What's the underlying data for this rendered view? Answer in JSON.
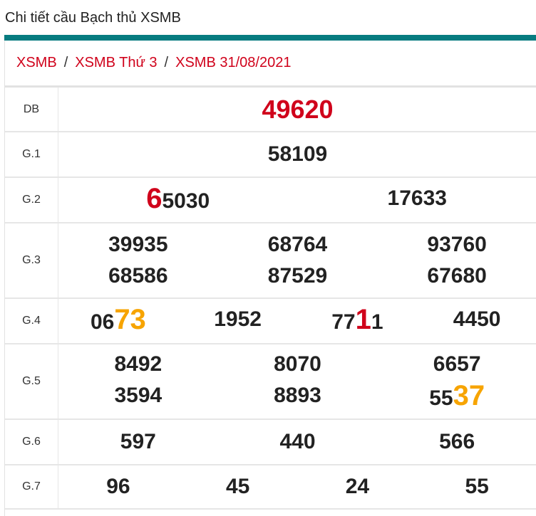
{
  "title": "Chi tiết cầu Bạch thủ XSMB",
  "accent": "#077c80",
  "breadcrumb": [
    "XSMB",
    "XSMB Thứ 3",
    "XSMB 31/08/2021"
  ],
  "breadcrumb_sep": "/",
  "prizes": [
    {
      "label": "DB",
      "cols": 1,
      "numbers": [
        [
          {
            "t": "49620"
          }
        ]
      ]
    },
    {
      "label": "G.1",
      "cols": 1,
      "numbers": [
        [
          {
            "t": "58109"
          }
        ]
      ]
    },
    {
      "label": "G.2",
      "cols": 2,
      "numbers": [
        [
          {
            "t": "6",
            "c": "red"
          },
          {
            "t": "5030"
          }
        ],
        [
          {
            "t": "17633"
          }
        ]
      ]
    },
    {
      "label": "G.3",
      "cols": 3,
      "numbers": [
        [
          {
            "t": "39935"
          }
        ],
        [
          {
            "t": "68764"
          }
        ],
        [
          {
            "t": "93760"
          }
        ],
        [
          {
            "t": "68586"
          }
        ],
        [
          {
            "t": "87529"
          }
        ],
        [
          {
            "t": "67680"
          }
        ]
      ]
    },
    {
      "label": "G.4",
      "cols": 4,
      "numbers": [
        [
          {
            "t": "06"
          },
          {
            "t": "73",
            "c": "orange"
          }
        ],
        [
          {
            "t": "1952"
          }
        ],
        [
          {
            "t": "77"
          },
          {
            "t": "1",
            "c": "red"
          },
          {
            "t": "1"
          }
        ],
        [
          {
            "t": "4450"
          }
        ]
      ]
    },
    {
      "label": "G.5",
      "cols": 3,
      "numbers": [
        [
          {
            "t": "8492"
          }
        ],
        [
          {
            "t": "8070"
          }
        ],
        [
          {
            "t": "6657"
          }
        ],
        [
          {
            "t": "3594"
          }
        ],
        [
          {
            "t": "8893"
          }
        ],
        [
          {
            "t": "55"
          },
          {
            "t": "37",
            "c": "orange"
          }
        ]
      ]
    },
    {
      "label": "G.6",
      "cols": 3,
      "numbers": [
        [
          {
            "t": "597"
          }
        ],
        [
          {
            "t": "440"
          }
        ],
        [
          {
            "t": "566"
          }
        ]
      ]
    },
    {
      "label": "G.7",
      "cols": 4,
      "numbers": [
        [
          {
            "t": "96"
          }
        ],
        [
          {
            "t": "45"
          }
        ],
        [
          {
            "t": "24"
          }
        ],
        [
          {
            "t": "55"
          }
        ]
      ]
    }
  ]
}
